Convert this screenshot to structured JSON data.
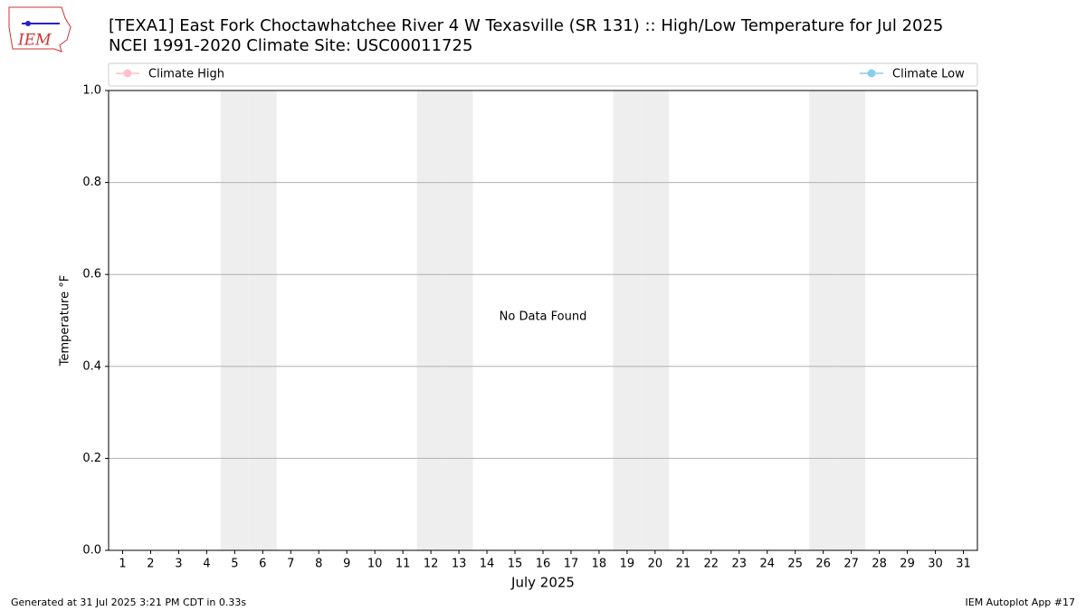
{
  "chart_data": {
    "type": "line",
    "title": "[TEXA1] East Fork Choctawhatchee River 4 W Texasville (SR 131) :: High/Low Temperature for Jul 2025",
    "subtitle": "NCEI 1991-2020 Climate Site: USC00011725",
    "x_label": "July 2025",
    "y_label": "Temperature °F",
    "annotation": "No Data Found",
    "x": [],
    "series": [
      {
        "name": "Climate High",
        "color": "pink",
        "values": []
      },
      {
        "name": "Climate Low",
        "color": "skyblue",
        "values": []
      }
    ],
    "xlim": [
      0.5,
      31.5
    ],
    "xticks": [
      1,
      2,
      3,
      4,
      5,
      6,
      7,
      8,
      9,
      10,
      11,
      12,
      13,
      14,
      15,
      16,
      17,
      18,
      19,
      20,
      21,
      22,
      23,
      24,
      25,
      26,
      27,
      28,
      29,
      30,
      31
    ],
    "ylim": [
      0,
      1
    ],
    "yticks": [
      {
        "value": 0,
        "label": "0.0"
      },
      {
        "value": 0.2,
        "label": "0.2"
      },
      {
        "value": 0.4,
        "label": "0.4"
      },
      {
        "value": 0.6,
        "label": "0.6"
      },
      {
        "value": 0.8,
        "label": "0.8"
      },
      {
        "value": 1,
        "label": "1.0"
      }
    ],
    "grid": true,
    "shaded_days": [
      5,
      6,
      12,
      13,
      19,
      20,
      26,
      27
    ],
    "shade_color": "#eeeeee"
  },
  "logo": "IEM",
  "footer": {
    "left": "Generated at 31 Jul 2025 3:21 PM CDT in 0.33s",
    "right": "IEM Autoplot App #17"
  }
}
